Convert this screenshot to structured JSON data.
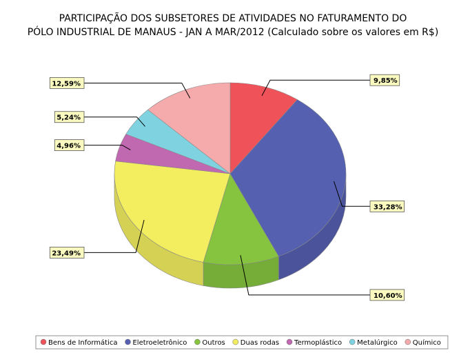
{
  "chart_data": {
    "type": "pie",
    "title": [
      "PARTICIPAÇÃO DOS SUBSETORES DE ATIVIDADES NO FATURAMENTO DO",
      "PÓLO INDUSTRIAL DE MANAUS - JAN A MAR/2012 (Calculado sobre os valores em R$)"
    ],
    "categories": [
      "Bens de Informática",
      "Eletroeletrônico",
      "Outros",
      "Duas rodas",
      "Termoplástico",
      "Metalúrgico",
      "Químico"
    ],
    "values": [
      9.85,
      33.28,
      10.6,
      23.49,
      4.96,
      5.24,
      12.59
    ],
    "value_labels": [
      "9,85%",
      "33,28%",
      "10,60%",
      "23,49%",
      "4,96%",
      "5,24%",
      "12,59%"
    ],
    "colors": [
      "#f0525a",
      "#5560b0",
      "#86c440",
      "#f2ee60",
      "#c068b0",
      "#7fd3e0",
      "#f5aaab"
    ],
    "legend": "bottom"
  }
}
